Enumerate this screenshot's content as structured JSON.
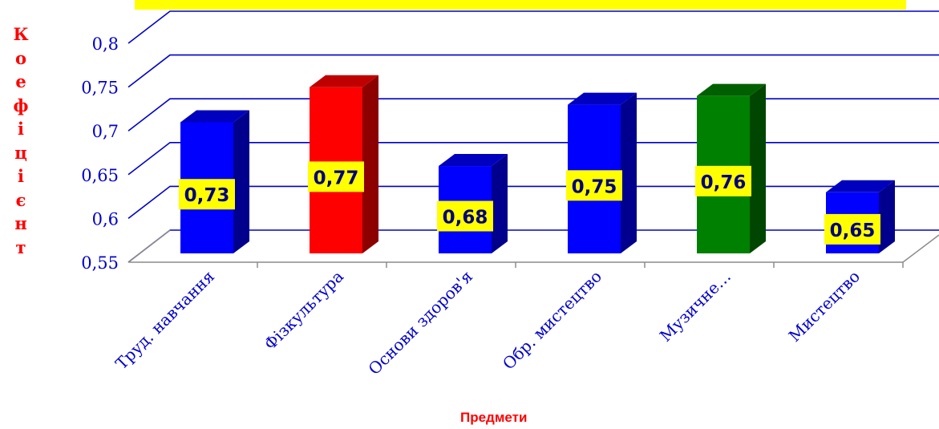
{
  "chart_data": {
    "type": "bar",
    "categories": [
      "Труд. навчання",
      "Фізкультура",
      "Основи здоров'я",
      "Обр. мистецтво",
      "Музичне…",
      "Мистецтво"
    ],
    "values": [
      0.73,
      0.77,
      0.68,
      0.75,
      0.76,
      0.65
    ],
    "data_labels": [
      "0,73",
      "0,77",
      "0,68",
      "0,75",
      "0,76",
      "0,65"
    ],
    "bar_colors": [
      "#0000ff",
      "#ff0000",
      "#0000ff",
      "#0000ff",
      "#008000",
      "#0000ff"
    ],
    "ylabel": "Коефіцієнт",
    "xlabel": "Предмети",
    "ylim": [
      0.55,
      0.8
    ],
    "yticks": [
      "0,55",
      "0,6",
      "0,65",
      "0,7",
      "0,75",
      "0,8"
    ],
    "grid": true,
    "style": "3d-column",
    "label_box_color": "#ffff00",
    "axis_text_color": "#0000cc",
    "grid_color": "#0000cc"
  }
}
